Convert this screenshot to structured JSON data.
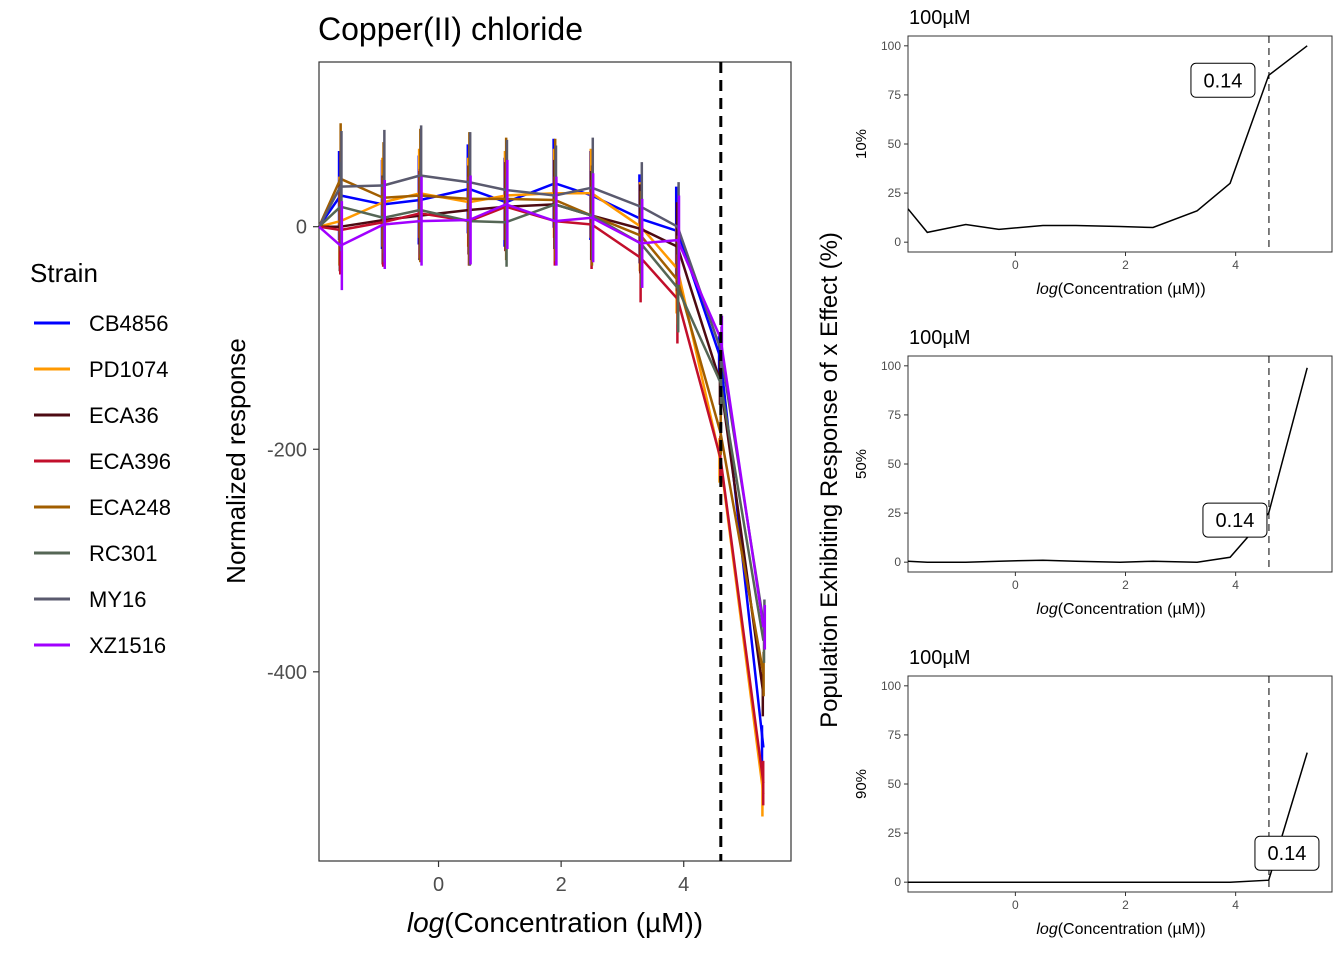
{
  "chart_data": [
    {
      "type": "line",
      "title": "Copper(II) chloride",
      "xlabel": "log(Concentration (µM))",
      "xlabel_prefix": "log",
      "xlabel_inner": "Concentration (µM)",
      "ylabel": "Normalized response",
      "xlim": [
        -1.95,
        5.75
      ],
      "ylim": [
        -570,
        148
      ],
      "x_ticks": [
        0,
        2,
        4
      ],
      "y_ticks": [
        0,
        -200,
        -400
      ],
      "vline_x": 4.605,
      "legend": {
        "title": "Strain",
        "position": "left"
      },
      "x": [
        -1.95,
        -1.6,
        -0.9,
        -0.3,
        0.5,
        1.1,
        1.9,
        2.5,
        3.3,
        3.9,
        4.6,
        5.3
      ],
      "series": [
        {
          "name": "CB4856",
          "color": "#0000FF",
          "values": [
            0,
            28,
            20,
            24,
            34,
            22,
            39,
            28,
            7,
            -4,
            -118,
            -468
          ],
          "errors": [
            0,
            40,
            40,
            40,
            40,
            40,
            40,
            40,
            40,
            40,
            20,
            20
          ]
        },
        {
          "name": "PD1074",
          "color": "#FF9900",
          "values": [
            0,
            5,
            22,
            30,
            22,
            28,
            30,
            30,
            0,
            -38,
            -210,
            -510
          ],
          "errors": [
            0,
            40,
            40,
            40,
            40,
            40,
            40,
            40,
            40,
            40,
            20,
            20
          ]
        },
        {
          "name": "ECA36",
          "color": "#4D0A12",
          "values": [
            0,
            0,
            6,
            10,
            15,
            18,
            20,
            10,
            -2,
            -18,
            -140,
            -420
          ],
          "errors": [
            0,
            40,
            40,
            40,
            40,
            40,
            40,
            40,
            40,
            40,
            20,
            20
          ]
        },
        {
          "name": "ECA396",
          "color": "#C20F2B",
          "values": [
            0,
            -3,
            4,
            12,
            5,
            18,
            5,
            2,
            -28,
            -65,
            -208,
            -500
          ],
          "errors": [
            0,
            40,
            40,
            40,
            40,
            40,
            40,
            40,
            40,
            40,
            20,
            20
          ]
        },
        {
          "name": "ECA248",
          "color": "#A15E00",
          "values": [
            0,
            43,
            26,
            28,
            25,
            25,
            24,
            10,
            -8,
            -48,
            -185,
            -402
          ],
          "errors": [
            0,
            50,
            50,
            60,
            60,
            55,
            55,
            45,
            40,
            40,
            20,
            20
          ]
        },
        {
          "name": "RC301",
          "color": "#556655",
          "values": [
            0,
            18,
            8,
            15,
            5,
            4,
            20,
            10,
            -15,
            -55,
            -140,
            -372
          ],
          "errors": [
            0,
            40,
            40,
            40,
            40,
            40,
            40,
            40,
            40,
            40,
            20,
            20
          ]
        },
        {
          "name": "MY16",
          "color": "#5A5A6E",
          "values": [
            0,
            36,
            37,
            46,
            40,
            33,
            28,
            35,
            18,
            0,
            -110,
            -355
          ],
          "errors": [
            0,
            50,
            50,
            45,
            45,
            45,
            45,
            45,
            40,
            40,
            20,
            20
          ]
        },
        {
          "name": "XZ1516",
          "color": "#A100FF",
          "values": [
            0,
            -17,
            2,
            5,
            6,
            20,
            5,
            8,
            -15,
            -12,
            -100,
            -360
          ],
          "errors": [
            0,
            40,
            40,
            40,
            40,
            40,
            40,
            40,
            40,
            40,
            20,
            20
          ]
        }
      ]
    },
    {
      "type": "line",
      "title": "100µM",
      "ylabel": "10%",
      "xlabel": "log(Concentration (µM))",
      "xlabel_prefix": "log",
      "xlabel_inner": "Concentration (µM)",
      "xlim": [
        -1.95,
        5.75
      ],
      "ylim": [
        -5,
        105
      ],
      "x_ticks": [
        0,
        2,
        4
      ],
      "y_ticks": [
        0,
        25,
        50,
        75,
        100
      ],
      "vline_x": 4.605,
      "annotation": {
        "text": "0.14"
      },
      "x": [
        -1.95,
        -1.6,
        -0.9,
        -0.3,
        0.5,
        1.1,
        1.9,
        2.5,
        3.3,
        3.9,
        4.6,
        5.3
      ],
      "values": [
        17,
        5,
        9,
        6.5,
        8.5,
        8.5,
        8,
        7.5,
        16,
        30,
        85,
        100
      ]
    },
    {
      "type": "line",
      "title": "100µM",
      "ylabel": "50%",
      "xlabel": "log(Concentration (µM))",
      "xlabel_prefix": "log",
      "xlabel_inner": "Concentration (µM)",
      "xlim": [
        -1.95,
        5.75
      ],
      "ylim": [
        -5,
        105
      ],
      "x_ticks": [
        0,
        2,
        4
      ],
      "y_ticks": [
        0,
        25,
        50,
        75,
        100
      ],
      "vline_x": 4.605,
      "annotation": {
        "text": "0.14"
      },
      "x": [
        -1.95,
        -1.6,
        -0.9,
        -0.3,
        0.5,
        1.1,
        1.9,
        2.5,
        3.3,
        3.9,
        4.6,
        5.3
      ],
      "values": [
        0.5,
        0,
        0,
        0.5,
        1,
        0.5,
        0,
        0.5,
        0,
        2.5,
        25,
        99
      ]
    },
    {
      "type": "line",
      "title": "100µM",
      "ylabel": "90%",
      "xlabel": "log(Concentration (µM))",
      "xlabel_prefix": "log",
      "xlabel_inner": "Concentration (µM)",
      "xlim": [
        -1.95,
        5.75
      ],
      "ylim": [
        -5,
        105
      ],
      "x_ticks": [
        0,
        2,
        4
      ],
      "y_ticks": [
        0,
        25,
        50,
        75,
        100
      ],
      "vline_x": 4.605,
      "annotation": {
        "text": "0.14"
      },
      "x": [
        -1.95,
        -1.6,
        -0.9,
        -0.3,
        0.5,
        1.1,
        1.9,
        2.5,
        3.3,
        3.9,
        4.6,
        5.3
      ],
      "values": [
        0,
        0,
        0,
        0,
        0,
        0,
        0,
        0,
        0,
        0,
        1,
        66
      ]
    }
  ],
  "shared_ylabel": "Population Exhibiting Response of x Effect (%)"
}
